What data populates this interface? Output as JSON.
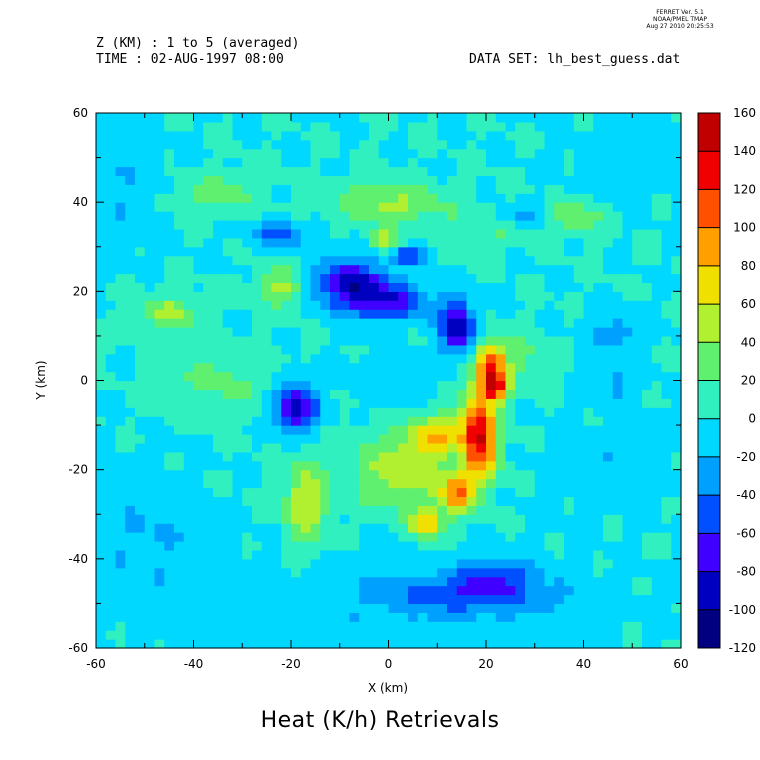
{
  "header": {
    "ferret_lines": [
      "FERRET Ver. 5.1",
      "NOAA/PMEL TMAP",
      "Aug 27 2010 20:25:53"
    ],
    "z_label": "Z (KM) : 1 to 5 (averaged)",
    "time_label": "TIME : 02-AUG-1997 08:00",
    "dataset_label": "DATA SET: lh_best_guess.dat"
  },
  "caption": "Heat (K/h) Retrievals",
  "colors": {
    "levels": [
      "#000080",
      "#0000c0",
      "#4000ff",
      "#0050ff",
      "#00a0ff",
      "#00d8ff",
      "#30f0c0",
      "#60f070",
      "#b0f030",
      "#f0e000",
      "#ffa000",
      "#ff5000",
      "#f00000",
      "#c00000",
      "#800000"
    ]
  },
  "chart_data": {
    "type": "heatmap",
    "title": "Heat (K/h) Retrievals",
    "xlabel": "X (km)",
    "ylabel": "Y (km)",
    "xlim": [
      -60,
      60
    ],
    "ylim": [
      -60,
      60
    ],
    "x_ticks": [
      -60,
      -40,
      -20,
      0,
      20,
      40,
      60
    ],
    "y_ticks": [
      -60,
      -40,
      -20,
      0,
      20,
      40,
      60
    ],
    "colorbar": {
      "levels": [
        -120,
        -100,
        -80,
        -60,
        -40,
        -20,
        0,
        20,
        40,
        60,
        80,
        100,
        120,
        140,
        160
      ],
      "labels": [
        "-120",
        "-100",
        "-80",
        "-60",
        "-40",
        "-20",
        "0",
        "20",
        "40",
        "60",
        "80",
        "100",
        "120",
        "140",
        "160"
      ]
    },
    "background_value": 0,
    "features": [
      {
        "x": 18,
        "y": -12,
        "sx": 2.2,
        "sy": 7,
        "amp": 120
      },
      {
        "x": 21,
        "y": -14,
        "sx": 1.8,
        "sy": 5,
        "amp": 50
      },
      {
        "x": 14,
        "y": -25,
        "sx": 2.5,
        "sy": 3,
        "amp": 90
      },
      {
        "x": 21,
        "y": 3,
        "sx": 2.2,
        "sy": 4,
        "amp": 120
      },
      {
        "x": 22,
        "y": -2,
        "sx": 2,
        "sy": 2,
        "amp": 80
      },
      {
        "x": 10,
        "y": -12,
        "sx": 4,
        "sy": 3,
        "amp": 70
      },
      {
        "x": 3,
        "y": -20,
        "sx": 7,
        "sy": 6,
        "amp": 55
      },
      {
        "x": 8,
        "y": -32,
        "sx": 2.5,
        "sy": 2.5,
        "amp": 70
      },
      {
        "x": -17,
        "y": -27,
        "sx": 3,
        "sy": 7,
        "amp": 60
      },
      {
        "x": 0,
        "y": 40,
        "sx": 8,
        "sy": 3,
        "amp": 45
      },
      {
        "x": -1,
        "y": 32,
        "sx": 2,
        "sy": 1.8,
        "amp": 60
      },
      {
        "x": -22,
        "y": 21,
        "sx": 3,
        "sy": 3,
        "amp": 50
      },
      {
        "x": -45,
        "y": 15,
        "sx": 4,
        "sy": 3,
        "amp": 45
      },
      {
        "x": 22,
        "y": 35,
        "sx": 8,
        "sy": 3,
        "amp": 25
      },
      {
        "x": 38,
        "y": 37,
        "sx": 4,
        "sy": 2.5,
        "amp": 40
      },
      {
        "x": -35,
        "y": 42,
        "sx": 6,
        "sy": 3,
        "amp": 30
      },
      {
        "x": -35,
        "y": 0,
        "sx": 8,
        "sy": 5,
        "amp": 25
      },
      {
        "x": 28,
        "y": 5,
        "sx": 4,
        "sy": 4,
        "amp": 25
      },
      {
        "x": -8,
        "y": 22,
        "sx": 5,
        "sy": 4,
        "amp": -80
      },
      {
        "x": 0,
        "y": 18,
        "sx": 6,
        "sy": 3,
        "amp": -70
      },
      {
        "x": 14,
        "y": 12,
        "sx": 2.5,
        "sy": 4,
        "amp": -95
      },
      {
        "x": 4,
        "y": 28,
        "sx": 2.5,
        "sy": 1.5,
        "amp": -60
      },
      {
        "x": -19,
        "y": -6,
        "sx": 3,
        "sy": 4,
        "amp": -95
      },
      {
        "x": 18,
        "y": -48,
        "sx": 12,
        "sy": 3,
        "amp": -45
      },
      {
        "x": 22,
        "y": -43,
        "sx": 5,
        "sy": 2.5,
        "amp": -45
      },
      {
        "x": -22,
        "y": 33,
        "sx": 4,
        "sy": 2,
        "amp": -50
      },
      {
        "x": 28,
        "y": 37,
        "sx": 5,
        "sy": 2,
        "amp": -40
      },
      {
        "x": 47,
        "y": 11,
        "sx": 4,
        "sy": 3,
        "amp": -30
      },
      {
        "x": 46,
        "y": 0,
        "sx": 4,
        "sy": 4,
        "amp": -25
      },
      {
        "x": 45,
        "y": -20,
        "sx": 8,
        "sy": 6,
        "amp": -18
      },
      {
        "x": -50,
        "y": -35,
        "sx": 8,
        "sy": 10,
        "amp": -20
      },
      {
        "x": 0,
        "y": -50,
        "sx": 30,
        "sy": 8,
        "amp": -15
      },
      {
        "x": -56,
        "y": 45,
        "sx": 6,
        "sy": 10,
        "amp": -20
      },
      {
        "x": 50,
        "y": 50,
        "sx": 8,
        "sy": 6,
        "amp": -15
      },
      {
        "x": 0,
        "y": 0,
        "sx": 6,
        "sy": 6,
        "amp": -10
      }
    ]
  }
}
